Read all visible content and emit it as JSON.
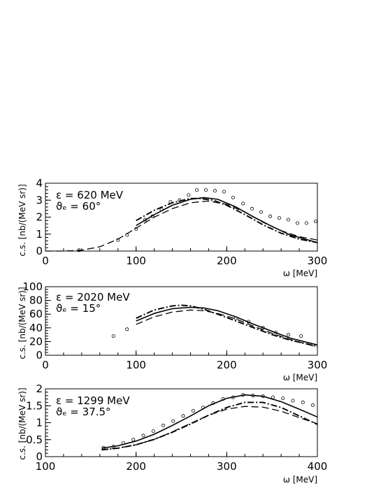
{
  "chart_data": [
    {
      "type": "line",
      "ylabel": "c.s. [nb/(MeV sr)]",
      "xlabel": "ω [MeV]",
      "xlim": [
        0,
        300
      ],
      "ylim": [
        0,
        4
      ],
      "xticks": [
        "0",
        "100",
        "200",
        "300"
      ],
      "yticks": [
        "0",
        "1",
        "2",
        "3",
        "4"
      ],
      "annotations": [
        "ε = 620 MeV",
        "ϑₑ = 60°"
      ],
      "series": [
        {
          "style": "solid",
          "x": [
            100,
            120,
            140,
            160,
            175,
            190,
            210,
            230,
            250,
            270,
            300
          ],
          "y": [
            1.5,
            2.15,
            2.7,
            3.05,
            3.15,
            3.05,
            2.6,
            2.0,
            1.45,
            0.95,
            0.5
          ]
        },
        {
          "style": "dash-dot",
          "x": [
            100,
            120,
            140,
            160,
            170,
            185,
            200,
            220,
            240,
            260,
            280,
            300
          ],
          "y": [
            1.8,
            2.4,
            2.85,
            3.1,
            3.1,
            3.0,
            2.7,
            2.15,
            1.55,
            1.05,
            0.7,
            0.5
          ]
        },
        {
          "style": "dashed",
          "x": [
            0,
            20,
            40,
            60,
            80,
            100,
            120,
            140,
            160,
            180,
            200,
            220,
            240,
            260,
            280,
            300
          ],
          "y": [
            0,
            0,
            0.05,
            0.25,
            0.7,
            1.35,
            2.0,
            2.5,
            2.85,
            2.95,
            2.75,
            2.3,
            1.7,
            1.2,
            0.85,
            0.65
          ]
        }
      ],
      "points": {
        "x": [
          37,
          80,
          90,
          100,
          110,
          118,
          128,
          138,
          148,
          158,
          167,
          177,
          187,
          197,
          207,
          218,
          228,
          238,
          248,
          258,
          268,
          278,
          288,
          298
        ],
        "y": [
          0.05,
          0.65,
          0.95,
          1.3,
          1.85,
          2.05,
          2.45,
          2.9,
          3.0,
          3.3,
          3.6,
          3.6,
          3.55,
          3.5,
          3.15,
          2.8,
          2.5,
          2.3,
          2.05,
          1.95,
          1.85,
          1.65,
          1.65,
          1.75
        ]
      }
    },
    {
      "type": "line",
      "ylabel": "c.s. [nb/(MeV sr)]",
      "xlabel": "ω [MeV]",
      "xlim": [
        0,
        300
      ],
      "ylim": [
        0,
        100
      ],
      "xticks": [
        "0",
        "100",
        "200",
        "300"
      ],
      "yticks": [
        "0",
        "20",
        "40",
        "60",
        "80",
        "100"
      ],
      "annotations": [
        "ε = 2020 MeV",
        "ϑₑ = 15°"
      ],
      "series": [
        {
          "style": "solid",
          "x": [
            100,
            120,
            140,
            160,
            175,
            190,
            210,
            230,
            250,
            270,
            300
          ],
          "y": [
            50,
            61,
            68,
            70,
            69,
            65,
            56,
            45,
            35,
            25,
            15
          ]
        },
        {
          "style": "dash-dot",
          "x": [
            100,
            120,
            140,
            150,
            160,
            175,
            190,
            210,
            230,
            250,
            270,
            300
          ],
          "y": [
            54,
            66,
            72,
            73,
            72,
            67,
            60,
            50,
            40,
            30,
            22,
            13
          ]
        },
        {
          "style": "dashed",
          "x": [
            100,
            120,
            140,
            160,
            175,
            190,
            210,
            230,
            250,
            270,
            300
          ],
          "y": [
            45,
            56,
            63,
            66,
            65,
            61,
            53,
            42,
            32,
            23,
            12
          ]
        }
      ],
      "points": {
        "x": [
          75,
          90,
          210,
          224,
          240,
          254,
          268,
          282
        ],
        "y": [
          28,
          38,
          54,
          49,
          40,
          33,
          30,
          28
        ]
      }
    },
    {
      "type": "line",
      "ylabel": "c.s. [nb/(MeV sr)]",
      "xlabel": "ω [MeV]",
      "xlim": [
        100,
        400
      ],
      "ylim": [
        0,
        2
      ],
      "xticks": [
        "100",
        "200",
        "300",
        "400"
      ],
      "yticks": [
        "0",
        "0.5",
        "1",
        "1.5",
        "2"
      ],
      "annotations": [
        "ε = 1299 MeV",
        "ϑₑ = 37.5°"
      ],
      "series": [
        {
          "style": "solid",
          "x": [
            162,
            180,
            200,
            220,
            240,
            260,
            280,
            300,
            320,
            340,
            360,
            380,
            400
          ],
          "y": [
            0.25,
            0.32,
            0.46,
            0.66,
            0.92,
            1.2,
            1.5,
            1.72,
            1.82,
            1.78,
            1.62,
            1.4,
            1.17
          ]
        },
        {
          "style": "dash-dot",
          "x": [
            162,
            180,
            200,
            220,
            240,
            260,
            280,
            300,
            320,
            340,
            360,
            380,
            400
          ],
          "y": [
            0.2,
            0.25,
            0.35,
            0.51,
            0.72,
            0.96,
            1.22,
            1.45,
            1.6,
            1.6,
            1.45,
            1.2,
            0.95
          ]
        },
        {
          "style": "dashed",
          "x": [
            162,
            180,
            200,
            220,
            240,
            260,
            280,
            300,
            320,
            340,
            360,
            380,
            400
          ],
          "y": [
            0.2,
            0.25,
            0.35,
            0.51,
            0.73,
            0.98,
            1.22,
            1.4,
            1.48,
            1.46,
            1.34,
            1.15,
            0.97
          ]
        }
      ],
      "points": {
        "x": [
          164,
          175,
          186,
          197,
          208,
          219,
          230,
          241,
          252,
          263,
          274,
          285,
          296,
          307,
          318,
          329,
          340,
          351,
          362,
          373,
          384,
          395
        ],
        "y": [
          0.26,
          0.3,
          0.4,
          0.5,
          0.62,
          0.75,
          0.92,
          1.05,
          1.2,
          1.35,
          1.45,
          1.58,
          1.7,
          1.75,
          1.82,
          1.8,
          1.78,
          1.75,
          1.72,
          1.65,
          1.6,
          1.52
        ]
      }
    }
  ]
}
